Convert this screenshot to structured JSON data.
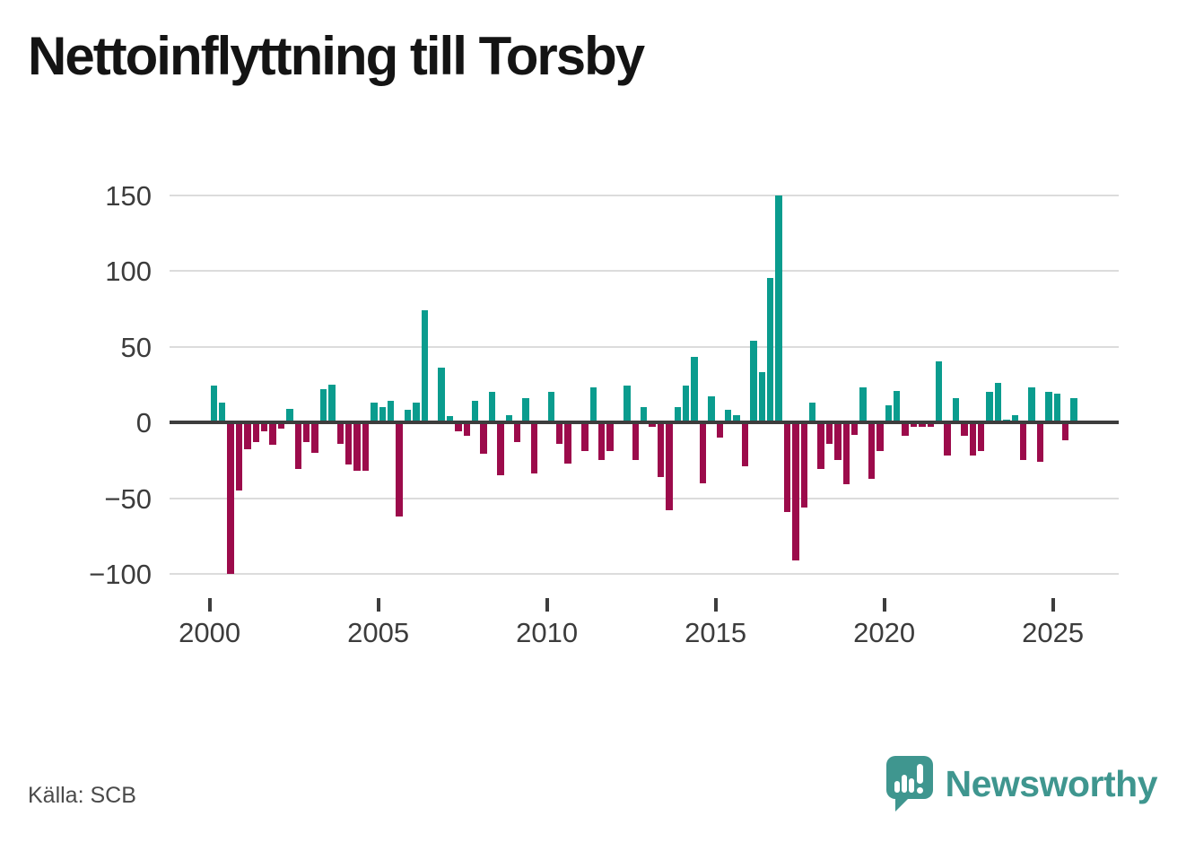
{
  "title": "Nettoinflyttning till Torsby",
  "source": "Källa: SCB",
  "branding": {
    "name": "Newsworthy"
  },
  "colors": {
    "positive": "#0a9c8e",
    "negative": "#9c0b4b",
    "grid": "#dcdcdc",
    "axis": "#3d3d3d",
    "tick_text": "#3c3c3c",
    "title_text": "#141414",
    "source_text": "#4a4a4a",
    "brand": "#3f968f"
  },
  "chart_data": {
    "type": "bar",
    "title": "Nettoinflyttning till Torsby",
    "xlabel": "",
    "ylabel": "",
    "frequency": "quarterly",
    "ylim": [
      -110,
      160
    ],
    "grid": "horizontal",
    "legend": "none",
    "y_ticks": [
      {
        "value": 150,
        "label": "150"
      },
      {
        "value": 100,
        "label": "100"
      },
      {
        "value": 50,
        "label": "50"
      },
      {
        "value": 0,
        "label": "0"
      },
      {
        "value": -50,
        "label": "−50"
      },
      {
        "value": -100,
        "label": "−100"
      }
    ],
    "x_tick_labels": [
      "2000",
      "2005",
      "2010",
      "2015",
      "2020",
      "2025"
    ],
    "series": [
      {
        "year": 2000,
        "values": [
          24,
          13,
          -100,
          -45
        ]
      },
      {
        "year": 2001,
        "values": [
          -18,
          -13,
          -6,
          -15
        ]
      },
      {
        "year": 2002,
        "values": [
          -4,
          9,
          -31,
          -13
        ]
      },
      {
        "year": 2003,
        "values": [
          -20,
          22,
          25,
          -14
        ]
      },
      {
        "year": 2004,
        "values": [
          -28,
          -32,
          -32,
          13
        ]
      },
      {
        "year": 2005,
        "values": [
          10,
          14,
          -62,
          8
        ]
      },
      {
        "year": 2006,
        "values": [
          13,
          74,
          0,
          36
        ]
      },
      {
        "year": 2007,
        "values": [
          4,
          -6,
          -9,
          14
        ]
      },
      {
        "year": 2008,
        "values": [
          -21,
          20,
          -35,
          5
        ]
      },
      {
        "year": 2009,
        "values": [
          -13,
          16,
          -34,
          0
        ]
      },
      {
        "year": 2010,
        "values": [
          20,
          -14,
          -27,
          0
        ]
      },
      {
        "year": 2011,
        "values": [
          -19,
          23,
          -25,
          -19
        ]
      },
      {
        "year": 2012,
        "values": [
          0,
          24,
          -25,
          10
        ]
      },
      {
        "year": 2013,
        "values": [
          -3,
          -36,
          -58,
          10
        ]
      },
      {
        "year": 2014,
        "values": [
          24,
          43,
          -40,
          17
        ]
      },
      {
        "year": 2015,
        "values": [
          -10,
          8,
          5,
          -29
        ]
      },
      {
        "year": 2016,
        "values": [
          54,
          33,
          95,
          150
        ]
      },
      {
        "year": 2017,
        "values": [
          -59,
          -91,
          -56,
          13
        ]
      },
      {
        "year": 2018,
        "values": [
          -31,
          -14,
          -25,
          -41
        ]
      },
      {
        "year": 2019,
        "values": [
          -8,
          23,
          -37,
          -19
        ]
      },
      {
        "year": 2020,
        "values": [
          11,
          21,
          -9,
          -3
        ]
      },
      {
        "year": 2021,
        "values": [
          -3,
          -3,
          40,
          -22
        ]
      },
      {
        "year": 2022,
        "values": [
          16,
          -9,
          -22,
          -19
        ]
      },
      {
        "year": 2023,
        "values": [
          20,
          26,
          2,
          5
        ]
      },
      {
        "year": 2024,
        "values": [
          -25,
          23,
          -26,
          20
        ]
      },
      {
        "year": 2025,
        "values": [
          19,
          -12,
          16
        ]
      }
    ]
  }
}
